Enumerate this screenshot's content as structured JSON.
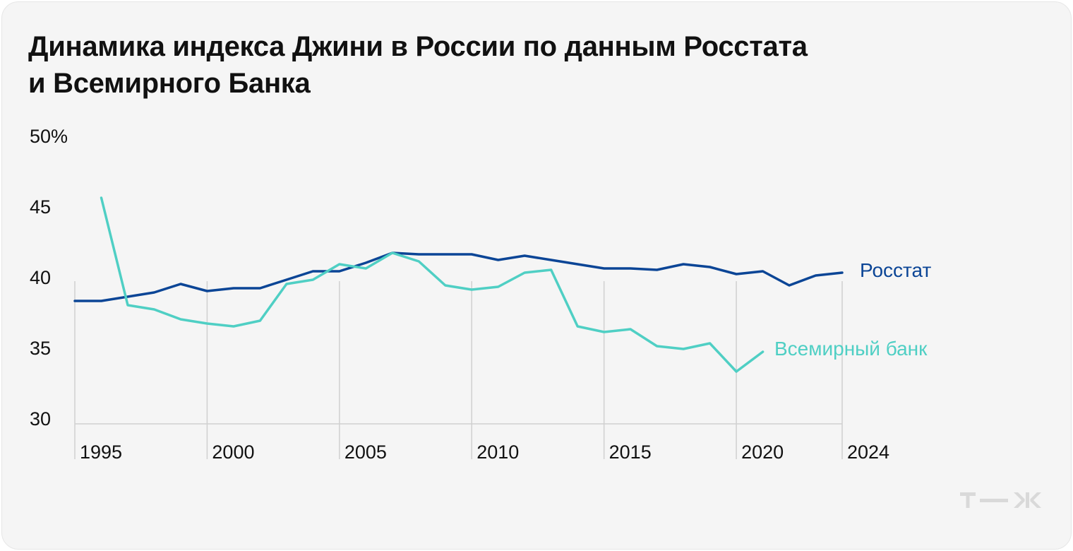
{
  "title_line1": "Динамика индекса Джини в России по данным Росстата",
  "title_line2": "и Всемирного Банка",
  "logo": "Т—Ж",
  "colors": {
    "rosstat": "#0b4596",
    "worldbank": "#4fcfc4",
    "grid": "#d0d0d0",
    "text": "#111111"
  },
  "chart_data": {
    "type": "line",
    "title": "Динамика индекса Джини в России по данным Росстата и Всемирного Банка",
    "xlabel": "",
    "ylabel": "",
    "xlim": [
      1995,
      2024
    ],
    "ylim": [
      30,
      50
    ],
    "y_ticks": [
      {
        "value": 50,
        "label": "50%"
      },
      {
        "value": 45,
        "label": "45"
      },
      {
        "value": 40,
        "label": "40"
      },
      {
        "value": 35,
        "label": "35"
      },
      {
        "value": 30,
        "label": "30"
      }
    ],
    "x_ticks": [
      1995,
      2000,
      2005,
      2010,
      2015,
      2020,
      2024
    ],
    "grid": true,
    "series": [
      {
        "name": "Росстат",
        "color": "#0b4596",
        "points": [
          [
            1995,
            38.7
          ],
          [
            1996,
            38.7
          ],
          [
            1997,
            39.0
          ],
          [
            1998,
            39.3
          ],
          [
            1999,
            39.9
          ],
          [
            2000,
            39.4
          ],
          [
            2001,
            39.6
          ],
          [
            2002,
            39.6
          ],
          [
            2003,
            40.2
          ],
          [
            2004,
            40.8
          ],
          [
            2005,
            40.8
          ],
          [
            2006,
            41.4
          ],
          [
            2007,
            42.1
          ],
          [
            2008,
            42.0
          ],
          [
            2009,
            42.0
          ],
          [
            2010,
            42.0
          ],
          [
            2011,
            41.6
          ],
          [
            2012,
            41.9
          ],
          [
            2013,
            41.6
          ],
          [
            2014,
            41.3
          ],
          [
            2015,
            41.0
          ],
          [
            2016,
            41.0
          ],
          [
            2017,
            40.9
          ],
          [
            2018,
            41.3
          ],
          [
            2019,
            41.1
          ],
          [
            2020,
            40.6
          ],
          [
            2021,
            40.8
          ],
          [
            2022,
            39.8
          ],
          [
            2023,
            40.5
          ],
          [
            2024,
            40.7
          ]
        ]
      },
      {
        "name": "Всемирный банк",
        "color": "#4fcfc4",
        "points": [
          [
            2021,
            35.1
          ]
        ],
        "points_all": [
          [
            1996,
            46.0
          ],
          [
            1997,
            38.4
          ],
          [
            1998,
            38.1
          ],
          [
            1999,
            37.4
          ],
          [
            2000,
            37.1
          ],
          [
            2001,
            36.9
          ],
          [
            2002,
            37.3
          ],
          [
            2003,
            39.9
          ],
          [
            2004,
            40.2
          ],
          [
            2005,
            41.3
          ],
          [
            2006,
            41.0
          ],
          [
            2007,
            42.1
          ],
          [
            2008,
            41.5
          ],
          [
            2009,
            39.8
          ],
          [
            2010,
            39.5
          ],
          [
            2011,
            39.7
          ],
          [
            2012,
            40.7
          ],
          [
            2013,
            40.9
          ],
          [
            2014,
            36.9
          ],
          [
            2015,
            36.5
          ],
          [
            2016,
            36.7
          ],
          [
            2017,
            35.5
          ],
          [
            2018,
            35.3
          ],
          [
            2019,
            35.7
          ],
          [
            2020,
            33.7
          ],
          [
            2021,
            35.1
          ]
        ]
      }
    ],
    "annotations": [
      {
        "series": "Росстат",
        "text": "Росстат"
      },
      {
        "series": "Всемирный банк",
        "text": "Всемирный банк"
      }
    ]
  }
}
